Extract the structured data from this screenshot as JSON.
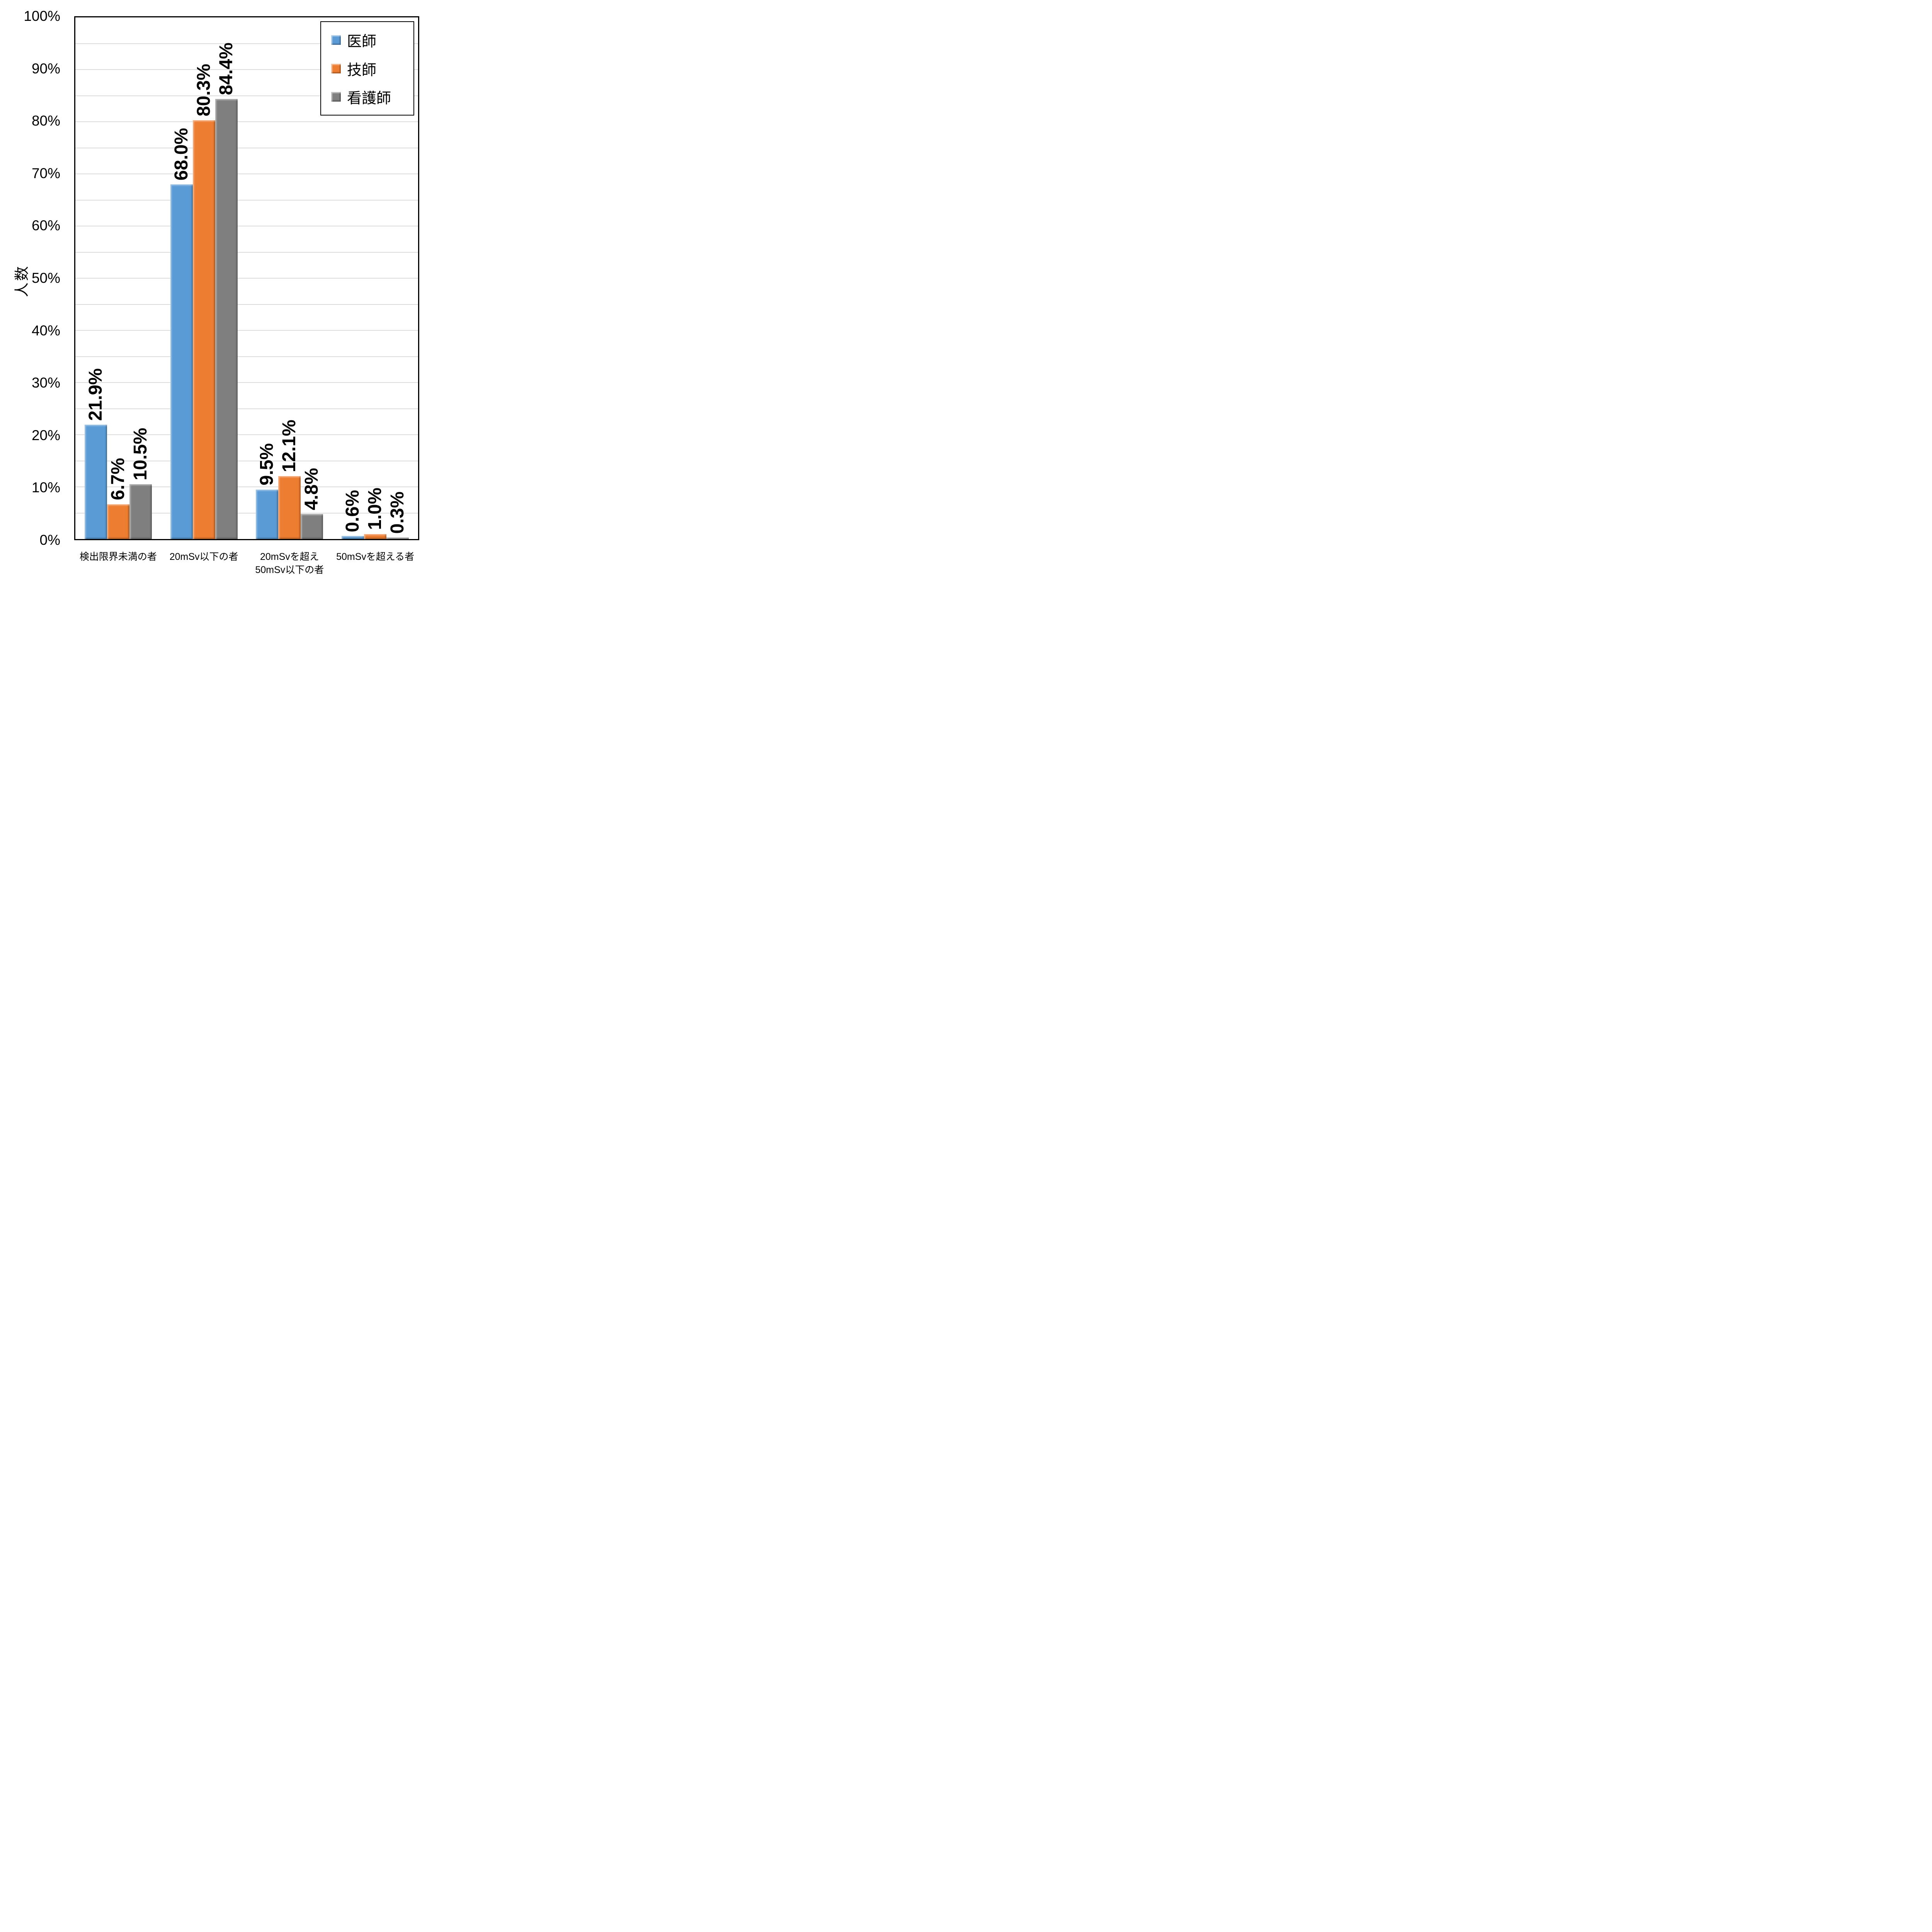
{
  "chart_data": {
    "type": "bar",
    "title": "",
    "xlabel": "",
    "ylabel": "人数",
    "ylim": [
      0,
      100
    ],
    "ytick_step": 10,
    "gridline_step": 5,
    "grid": true,
    "legend_position": "top-right",
    "yticks": [
      "100%",
      "90%",
      "80%",
      "70%",
      "60%",
      "50%",
      "40%",
      "30%",
      "20%",
      "10%",
      "0%"
    ],
    "categories": [
      "検出限界未満の者",
      "20mSv以下の者",
      "20mSvを超え\n50mSv以下の者",
      "50mSvを超える者"
    ],
    "series": [
      {
        "name": "医師",
        "color": "#5B9BD5",
        "values": [
          21.9,
          68.0,
          9.5,
          0.6
        ],
        "labels": [
          "21.9%",
          "68.0%",
          "9.5%",
          "0.6%"
        ]
      },
      {
        "name": "技師",
        "color": "#ED7D31",
        "values": [
          6.7,
          80.3,
          12.1,
          1.0
        ],
        "labels": [
          "6.7%",
          "80.3%",
          "12.1%",
          "1.0%"
        ]
      },
      {
        "name": "看護師",
        "color": "#7F7F7F",
        "values": [
          10.5,
          84.4,
          4.8,
          0.3
        ],
        "labels": [
          "10.5%",
          "84.4%",
          "4.8%",
          "0.3%"
        ]
      }
    ],
    "colors": {
      "gridline": "#DCDCDC",
      "axis": "#000000",
      "background": "#FFFFFF",
      "label_text": "#000000"
    }
  }
}
